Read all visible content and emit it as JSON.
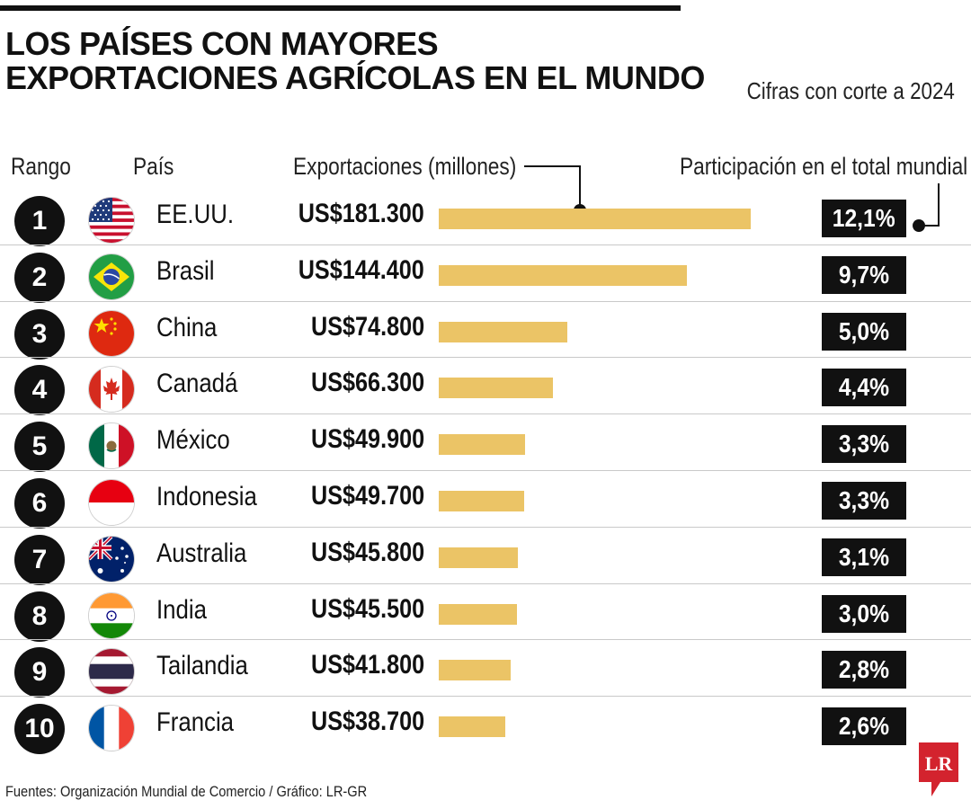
{
  "title": "LOS PAÍSES CON MAYORES EXPORTACIONES AGRÍCOLAS EN EL MUNDO",
  "subtitle": "Cifras con corte a 2024",
  "headers": {
    "rank": "Rango",
    "country": "País",
    "exports": "Exportaciones (millones)",
    "share": "Participación en el total mundial"
  },
  "source": "Fuentes: Organización Mundial de Comercio / Gráfico: LR-GR",
  "logo_text": "LR",
  "colors": {
    "bar": "#ebc466",
    "dark": "#111111",
    "logo": "#d3232e"
  },
  "chart_data": {
    "type": "bar",
    "orientation": "horizontal",
    "title": "LOS PAÍSES CON MAYORES EXPORTACIONES AGRÍCOLAS EN EL MUNDO",
    "subtitle": "Cifras con corte a 2024",
    "categories": [
      "EE.UU.",
      "Brasil",
      "China",
      "Canadá",
      "México",
      "Indonesia",
      "Australia",
      "India",
      "Tailandia",
      "Francia"
    ],
    "ranks": [
      "1",
      "2",
      "3",
      "4",
      "5",
      "6",
      "7",
      "8",
      "9",
      "10"
    ],
    "flags": [
      "flag-usa-icon",
      "flag-brazil-icon",
      "flag-china-icon",
      "flag-canada-icon",
      "flag-mexico-icon",
      "flag-indonesia-icon",
      "flag-australia-icon",
      "flag-india-icon",
      "flag-thailand-icon",
      "flag-france-icon"
    ],
    "values": [
      181300,
      144400,
      74800,
      66300,
      49900,
      49700,
      45800,
      45500,
      41800,
      38700
    ],
    "value_labels": [
      "US$181.300",
      "US$144.400",
      "US$74.800",
      "US$66.300",
      "US$49.900",
      "US$49.700",
      "US$45.800",
      "US$45.500",
      "US$41.800",
      "US$38.700"
    ],
    "share_labels": [
      "12,1%",
      "9,7%",
      "5,0%",
      "4,4%",
      "3,3%",
      "3,3%",
      "3,1%",
      "3,0%",
      "2,8%",
      "2,6%"
    ],
    "shares": [
      12.1,
      9.7,
      5.0,
      4.4,
      3.3,
      3.3,
      3.1,
      3.0,
      2.8,
      2.6
    ],
    "xlim": [
      0,
      181300
    ],
    "grid": false,
    "legend": "none"
  }
}
